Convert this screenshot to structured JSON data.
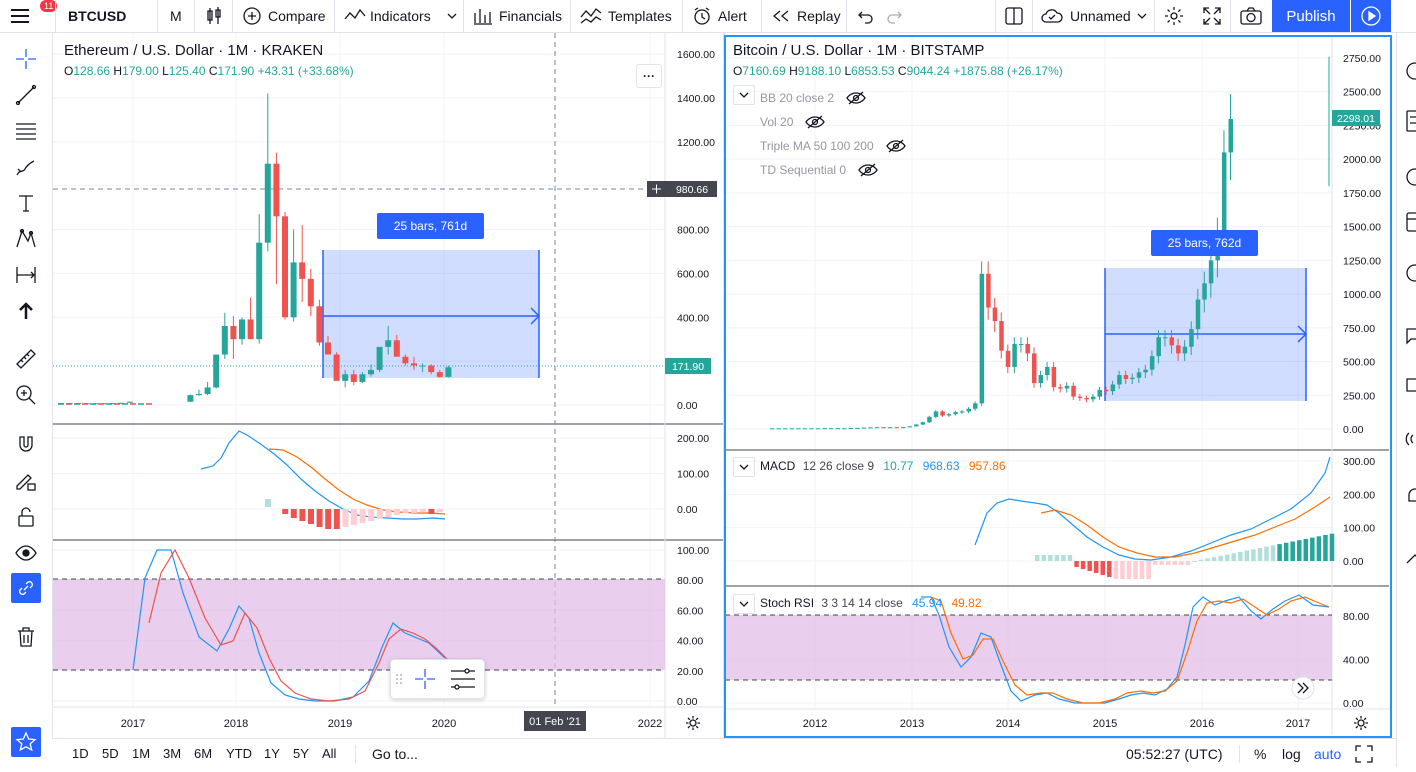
{
  "toolbar": {
    "menu_badge": "11",
    "symbol": "BTCUSD",
    "interval": "M",
    "compare": "Compare",
    "indicators": "Indicators",
    "financials": "Financials",
    "templates": "Templates",
    "alert": "Alert",
    "replay": "Replay",
    "layout_name": "Unnamed",
    "publish": "Publish"
  },
  "left_chart": {
    "title": "Ethereum / U.S. Dollar · 1M · KRAKEN",
    "ohlc": {
      "o_label": "O",
      "o": "128.66",
      "h_label": "H",
      "h": "179.00",
      "l_label": "L",
      "l": "125.40",
      "c_label": "C",
      "c": "171.90",
      "chg": "+43.31 (+33.68%)"
    },
    "last_price_tag": "171.90",
    "crosshair_price_tag": "980.66",
    "crosshair_date_tag": "01 Feb '21",
    "measure_label": "25 bars, 761d",
    "more_button": "···",
    "y_ticks": [
      "1600.00",
      "1400.00",
      "1200.00",
      "1000.00",
      "800.00",
      "600.00",
      "400.00",
      "200.00",
      "0.00"
    ],
    "macd_ticks": [
      "200.00",
      "100.00",
      "0.00"
    ],
    "stoch_ticks": [
      "100.00",
      "80.00",
      "60.00",
      "40.00",
      "20.00",
      "0.00"
    ],
    "x_ticks": [
      "2017",
      "2018",
      "2019",
      "2020",
      "2022"
    ]
  },
  "right_chart": {
    "title": "Bitcoin / U.S. Dollar · 1M · BITSTAMP",
    "ohlc": {
      "o_label": "O",
      "o": "7160.69",
      "h_label": "H",
      "h": "9188.10",
      "l_label": "L",
      "l": "6853.53",
      "c_label": "C",
      "c": "9044.24",
      "chg": "+1875.88 (+26.17%)"
    },
    "hidden_indicators": [
      "BB 20 close 2",
      "Vol 20",
      "Triple MA 50 100 200",
      "TD Sequential 0"
    ],
    "last_price_tag": "2298.01",
    "measure_label": "25 bars, 762d",
    "macd_legend": {
      "name": "MACD",
      "params": "12 26 close 9",
      "v1": "10.77",
      "v2": "968.63",
      "v3": "957.86"
    },
    "stoch_legend": {
      "name": "Stoch RSI",
      "params": "3 3 14 14 close",
      "v1": "45.94",
      "v2": "49.82"
    },
    "y_ticks": [
      "2750.00",
      "2500.00",
      "2250.00",
      "2000.00",
      "1750.00",
      "1500.00",
      "1250.00",
      "1000.00",
      "750.00",
      "500.00",
      "250.00",
      "0.00"
    ],
    "macd_ticks": [
      "300.00",
      "200.00",
      "100.00",
      "0.00"
    ],
    "stoch_ticks": [
      "80.00",
      "40.00",
      "0.00"
    ],
    "x_ticks": [
      "2012",
      "2013",
      "2014",
      "2015",
      "2016",
      "2017"
    ]
  },
  "bottom": {
    "ranges": [
      "1D",
      "5D",
      "1M",
      "3M",
      "6M",
      "YTD",
      "1Y",
      "5Y",
      "All"
    ],
    "goto": "Go to...",
    "time": "05:52:27 (UTC)",
    "percent": "%",
    "log": "log",
    "auto": "auto"
  },
  "colors": {
    "up": "#26a69a",
    "down": "#ef5350",
    "accent": "#2962ff",
    "macd": "#2196f3",
    "signal": "#ff6d00",
    "stoch_band": "#e1bee7"
  },
  "chart_data": [
    {
      "type": "candlestick",
      "title": "Ethereum / U.S. Dollar · 1M · KRAKEN",
      "ylim": [
        0,
        1650
      ],
      "x_ticks": [
        "2017",
        "2018",
        "2019",
        "2020",
        "2022"
      ],
      "candles_ohlc": [
        [
          8,
          10,
          7,
          9
        ],
        [
          9,
          10,
          8,
          9
        ],
        [
          9,
          10,
          7,
          8
        ],
        [
          8,
          9,
          7,
          8
        ],
        [
          8,
          9,
          7,
          8
        ],
        [
          8,
          9,
          7,
          8
        ],
        [
          8,
          9,
          7,
          9
        ],
        [
          9,
          11,
          8,
          10
        ],
        [
          10,
          16,
          9,
          15
        ],
        [
          15,
          48,
          14,
          45
        ],
        [
          45,
          70,
          42,
          50
        ],
        [
          50,
          105,
          45,
          80
        ],
        [
          80,
          230,
          75,
          230
        ],
        [
          230,
          420,
          210,
          360
        ],
        [
          360,
          405,
          210,
          300
        ],
        [
          300,
          400,
          275,
          390
        ],
        [
          390,
          490,
          300,
          300
        ],
        [
          300,
          870,
          280,
          740
        ],
        [
          740,
          1420,
          700,
          1100
        ],
        [
          1100,
          1150,
          550,
          860
        ],
        [
          860,
          880,
          390,
          400
        ],
        [
          400,
          800,
          380,
          650
        ],
        [
          650,
          820,
          470,
          575
        ],
        [
          575,
          620,
          405,
          450
        ],
        [
          450,
          480,
          270,
          285
        ],
        [
          285,
          315,
          255,
          230
        ],
        [
          230,
          240,
          160,
          110
        ],
        [
          110,
          160,
          80,
          140
        ],
        [
          140,
          160,
          90,
          105
        ],
        [
          105,
          150,
          100,
          140
        ],
        [
          140,
          185,
          130,
          160
        ],
        [
          160,
          260,
          150,
          265
        ],
        [
          265,
          360,
          230,
          295
        ],
        [
          295,
          320,
          250,
          220
        ],
        [
          220,
          230,
          180,
          190
        ],
        [
          190,
          220,
          160,
          180
        ],
        [
          180,
          190,
          150,
          180
        ],
        [
          180,
          185,
          140,
          150
        ],
        [
          150,
          160,
          125,
          128
        ],
        [
          128,
          179,
          125,
          172
        ]
      ],
      "indicators": [
        "MACD",
        "Stoch RSI"
      ]
    },
    {
      "type": "candlestick",
      "title": "Bitcoin / U.S. Dollar · 1M · BITSTAMP",
      "ylim": [
        0,
        2800
      ],
      "x_ticks": [
        "2012",
        "2013",
        "2014",
        "2015",
        "2016",
        "2017"
      ],
      "last_price": 2298.01,
      "indicators": [
        "MACD 12 26 close 9",
        "Stoch RSI 3 3 14 14 close"
      ]
    }
  ]
}
